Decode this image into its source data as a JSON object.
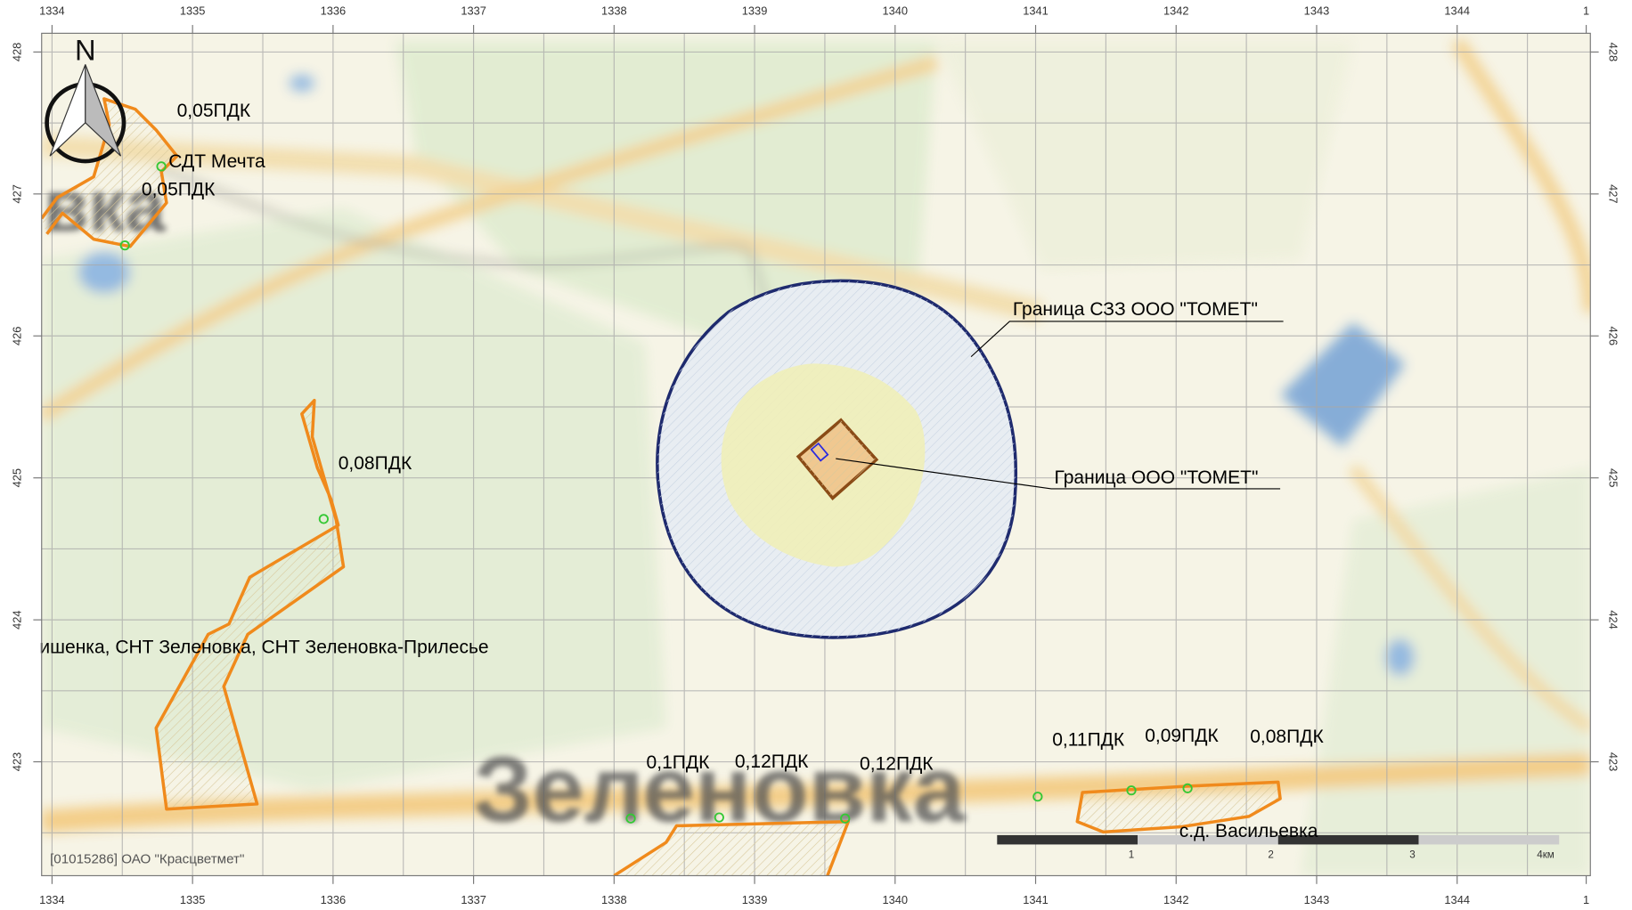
{
  "axes": {
    "x_labels": [
      "1334",
      "1335",
      "1336",
      "1337",
      "1338",
      "1339",
      "1340",
      "1341",
      "1342",
      "1343",
      "1344",
      "1"
    ],
    "y_labels": [
      "428",
      "427",
      "426",
      "425",
      "424",
      "423"
    ]
  },
  "place_names": [
    "вка",
    "Зеленовка"
  ],
  "labels": {
    "szz": "Граница СЗЗ ООО \"ТОМЕТ\"",
    "boundary": "Граница ООО \"ТОМЕТ\"",
    "points": [
      {
        "text": "0,05ПДК"
      },
      {
        "text": "СДТ Мечта"
      },
      {
        "text": "0,05ПДК"
      },
      {
        "text": "0,08ПДК"
      },
      {
        "text": "ишенка, СНТ Зеленовка, СНТ Зеленовка-Прилесье"
      },
      {
        "text": "0,1ПДК"
      },
      {
        "text": "0,12ПДК"
      },
      {
        "text": "0,12ПДК"
      },
      {
        "text": "0,11ПДК"
      },
      {
        "text": "0,09ПДК"
      },
      {
        "text": "0,08ПДК"
      },
      {
        "text": "с.д. Васильевка"
      }
    ]
  },
  "north": "N",
  "scale_bar": [
    "1",
    "2",
    "3",
    "4км"
  ],
  "copyright": "[01015286] ОАО \"Красцветмет\""
}
